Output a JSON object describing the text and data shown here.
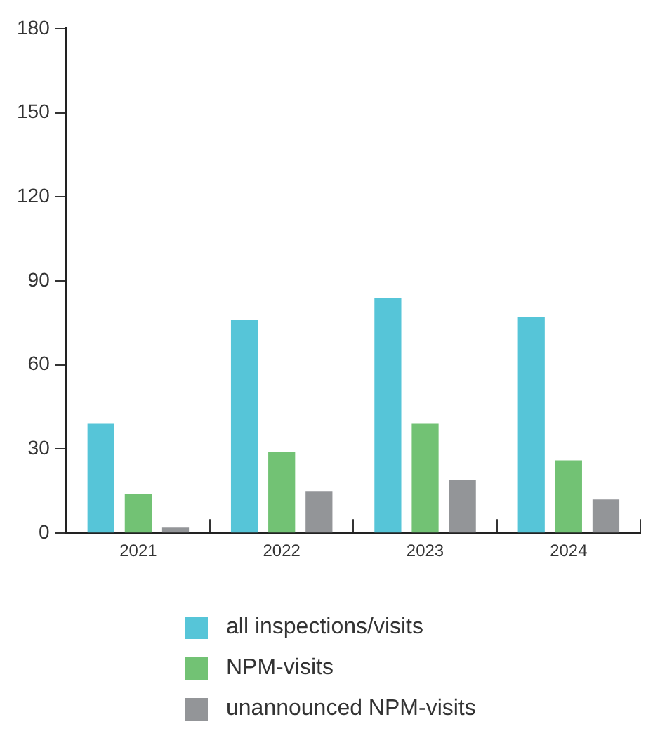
{
  "chart_data": {
    "type": "bar",
    "categories": [
      "2021",
      "2022",
      "2023",
      "2024"
    ],
    "series": [
      {
        "name": "all inspections/visits",
        "color": "#56c5d8",
        "values": [
          39,
          76,
          84,
          77
        ]
      },
      {
        "name": "NPM-visits",
        "color": "#72c274",
        "values": [
          14,
          29,
          39,
          26
        ]
      },
      {
        "name": "unannounced NPM-visits",
        "color": "#939598",
        "values": [
          2,
          15,
          19,
          12
        ]
      }
    ],
    "ylim": [
      0,
      180
    ],
    "yticks": [
      0,
      30,
      60,
      90,
      120,
      150,
      180
    ],
    "grid": false,
    "legend": "bottom"
  }
}
